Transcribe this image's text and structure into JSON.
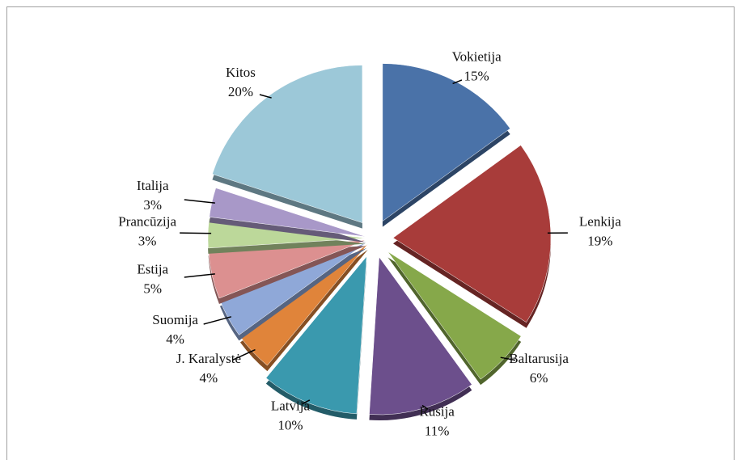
{
  "chart_data": {
    "type": "pie",
    "categories": [
      "Vokietija",
      "Lenkija",
      "Baltarusija",
      "Rusija",
      "Latvija",
      "J. Karalystė",
      "Suomija",
      "Estija",
      "Prancūzija",
      "Italija",
      "Kitos"
    ],
    "values": [
      15,
      19,
      6,
      11,
      10,
      4,
      4,
      5,
      3,
      3,
      20
    ],
    "value_labels": [
      "15%",
      "19%",
      "6%",
      "11%",
      "10%",
      "4%",
      "4%",
      "5%",
      "3%",
      "3%",
      "20%"
    ],
    "colors": [
      "#4a72a8",
      "#a83c3a",
      "#86a84a",
      "#6c4f8c",
      "#3a99ae",
      "#e0843a",
      "#8fa8d8",
      "#dc9090",
      "#bcd89a",
      "#a898c8",
      "#9cc8d8"
    ]
  }
}
